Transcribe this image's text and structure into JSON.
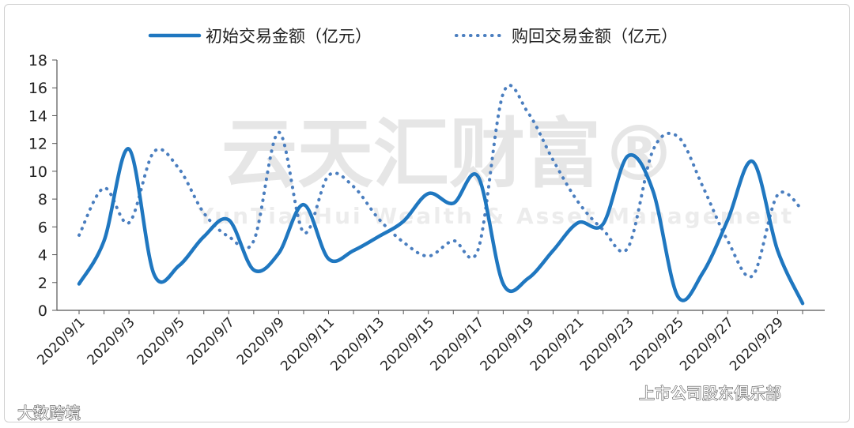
{
  "chart_data": {
    "type": "line",
    "categories": [
      "2020/9/1",
      "2020/9/2",
      "2020/9/3",
      "2020/9/4",
      "2020/9/5",
      "2020/9/6",
      "2020/9/7",
      "2020/9/8",
      "2020/9/9",
      "2020/9/10",
      "2020/9/11",
      "2020/9/12",
      "2020/9/13",
      "2020/9/14",
      "2020/9/15",
      "2020/9/16",
      "2020/9/17",
      "2020/9/18",
      "2020/9/19",
      "2020/9/20",
      "2020/9/21",
      "2020/9/22",
      "2020/9/23",
      "2020/9/24",
      "2020/9/25",
      "2020/9/26",
      "2020/9/27",
      "2020/9/28",
      "2020/9/29",
      "2020/9/30"
    ],
    "x_tick_labels": [
      "2020/9/1",
      "2020/9/3",
      "2020/9/5",
      "2020/9/7",
      "2020/9/9",
      "2020/9/11",
      "2020/9/13",
      "2020/9/15",
      "2020/9/17",
      "2020/9/19",
      "2020/9/21",
      "2020/9/23",
      "2020/9/25",
      "2020/9/27",
      "2020/9/29"
    ],
    "series": [
      {
        "name": "初始交易金额（亿元）",
        "style": "solid",
        "color": "#1f77c0",
        "values": [
          1.9,
          5.0,
          11.6,
          2.6,
          3.2,
          5.3,
          6.5,
          2.9,
          4.1,
          7.6,
          3.7,
          4.3,
          5.3,
          6.4,
          8.4,
          7.7,
          9.6,
          1.9,
          2.3,
          4.3,
          6.3,
          6.2,
          11.1,
          8.6,
          1.0,
          2.7,
          6.5,
          10.7,
          4.3,
          0.5
        ]
      },
      {
        "name": "购回交易金额（亿元）",
        "style": "dotted",
        "color": "#4a7ebf",
        "values": [
          5.4,
          8.8,
          6.3,
          11.4,
          10.2,
          7.0,
          5.3,
          5.0,
          12.8,
          5.6,
          9.7,
          8.9,
          6.6,
          4.9,
          3.9,
          5.0,
          4.4,
          15.6,
          14.2,
          10.8,
          7.8,
          5.8,
          4.5,
          11.5,
          12.5,
          8.9,
          5.0,
          2.5,
          8.3,
          7.2
        ]
      }
    ],
    "ylim": [
      0,
      18
    ],
    "yticks": [
      0,
      2,
      4,
      6,
      8,
      10,
      12,
      14,
      16,
      18
    ],
    "legend_position": "top",
    "grid": false
  },
  "watermark": {
    "text": "云天汇财富®",
    "subtext": "YunTianHui Wealth & Asset Management"
  },
  "footer": {
    "left": "大数跨境",
    "right": "上市公司股东俱乐部"
  }
}
